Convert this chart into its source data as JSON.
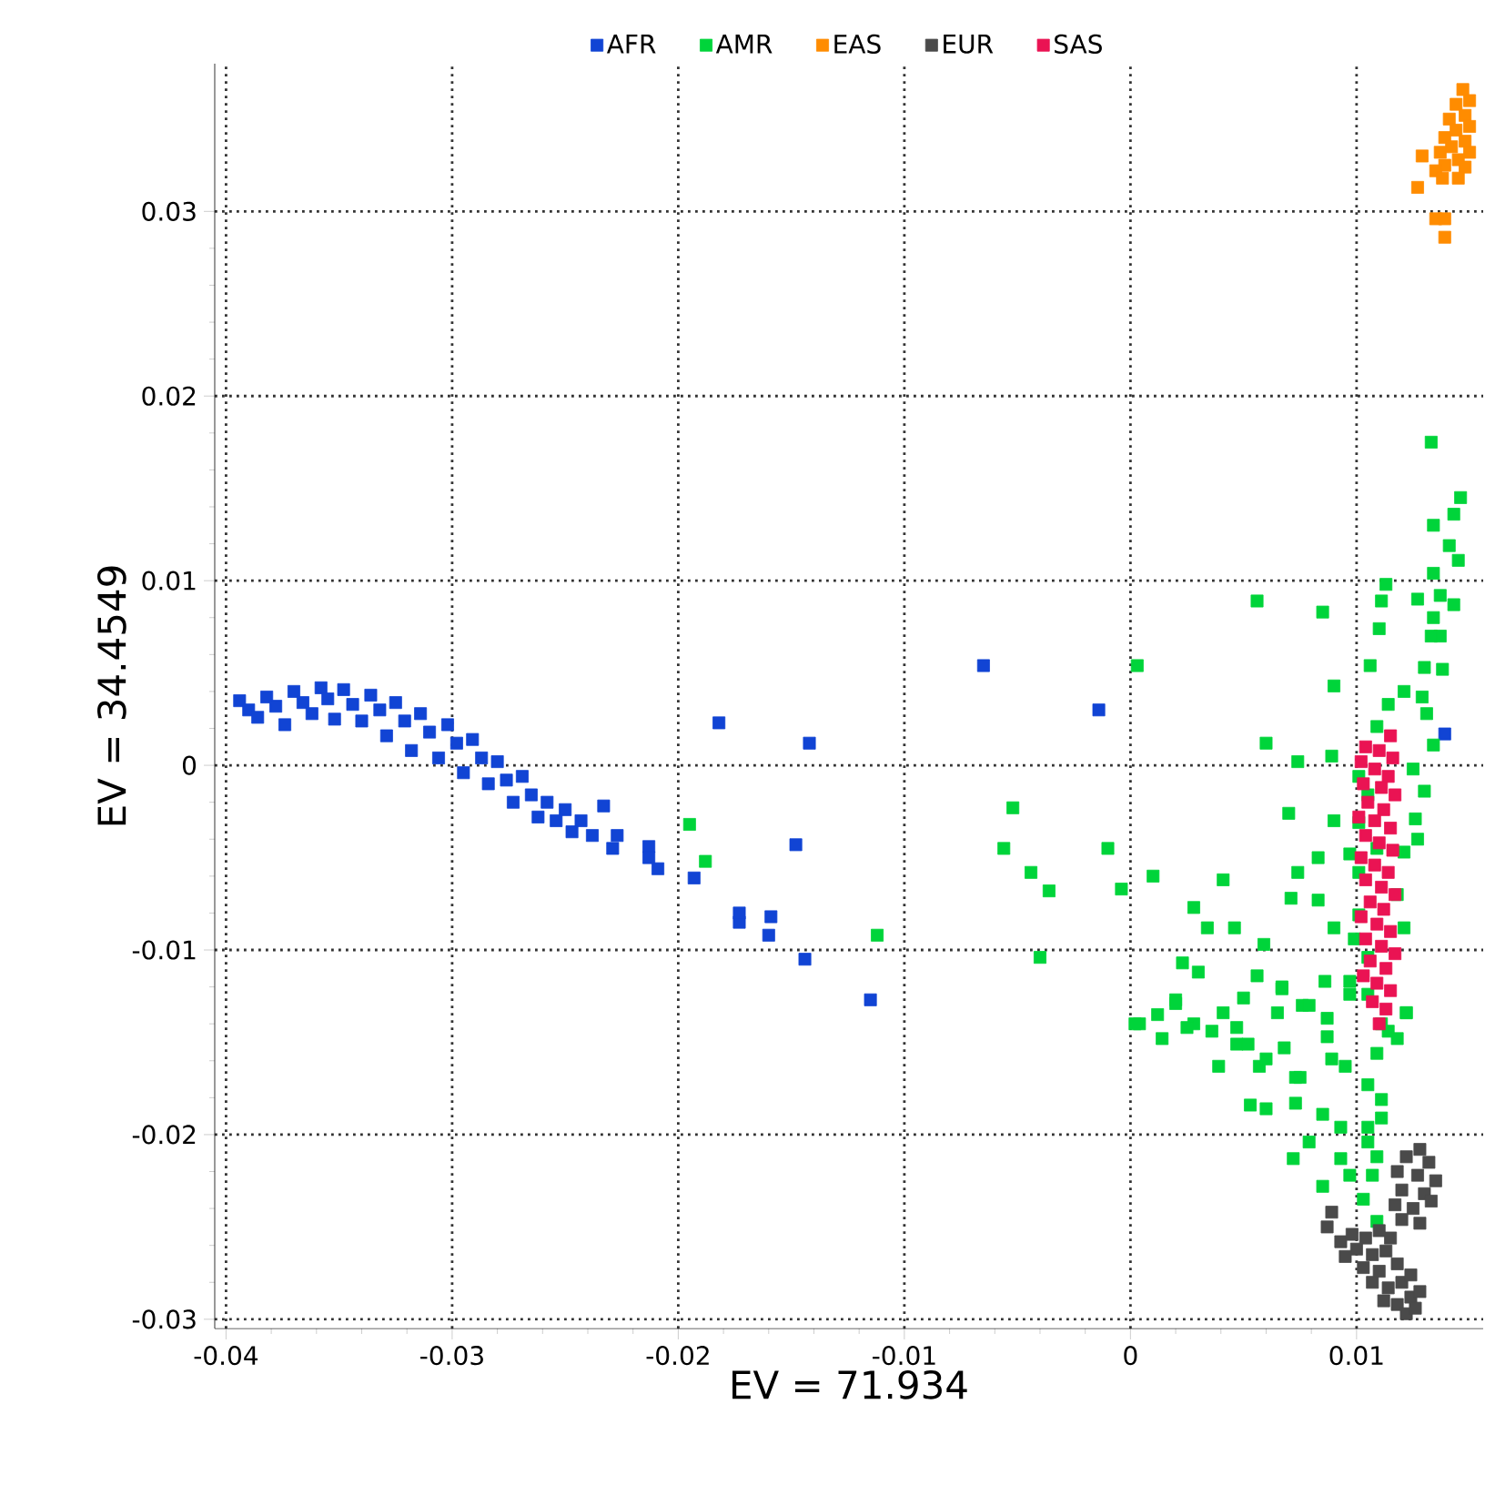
{
  "chart_data": {
    "type": "scatter",
    "xlabel": "EV = 71.934",
    "ylabel": "EV = 34.4549",
    "xlim": [
      -0.0405,
      0.0156
    ],
    "ylim": [
      -0.0305,
      0.038
    ],
    "xticks": [
      -0.04,
      -0.03,
      -0.02,
      -0.01,
      0,
      0.01
    ],
    "yticks": [
      -0.03,
      -0.02,
      -0.01,
      0,
      0.01,
      0.02,
      0.03
    ],
    "grid": true,
    "legend": "top",
    "marker": "square",
    "series": [
      {
        "name": "AFR",
        "color": "#1144d4",
        "x": [
          -0.0394,
          -0.039,
          -0.0386,
          -0.0382,
          -0.0378,
          -0.0374,
          -0.037,
          -0.0366,
          -0.0362,
          -0.0358,
          -0.0355,
          -0.0352,
          -0.0348,
          -0.0344,
          -0.034,
          -0.0336,
          -0.0332,
          -0.0329,
          -0.0325,
          -0.0321,
          -0.0318,
          -0.0314,
          -0.031,
          -0.0306,
          -0.0302,
          -0.0298,
          -0.0295,
          -0.0291,
          -0.0287,
          -0.0284,
          -0.028,
          -0.0276,
          -0.0273,
          -0.0269,
          -0.0265,
          -0.0262,
          -0.0258,
          -0.0254,
          -0.025,
          -0.0247,
          -0.0243,
          -0.0238,
          -0.0233,
          -0.0229,
          -0.0227,
          -0.0213,
          -0.0213,
          -0.0209,
          -0.0193,
          -0.0182,
          -0.0142,
          -0.0148,
          -0.0173,
          -0.0173,
          -0.0159,
          -0.016,
          -0.0144,
          -0.0115,
          -0.0065,
          -0.0014,
          0.0139
        ],
        "values": [
          0.0035,
          0.003,
          0.0026,
          0.0037,
          0.0032,
          0.0022,
          0.004,
          0.0034,
          0.0028,
          0.0042,
          0.0036,
          0.0025,
          0.0041,
          0.0033,
          0.0024,
          0.0038,
          0.003,
          0.0016,
          0.0034,
          0.0024,
          0.0008,
          0.0028,
          0.0018,
          0.0004,
          0.0022,
          0.0012,
          -0.0004,
          0.0014,
          0.0004,
          -0.001,
          0.0002,
          -0.0008,
          -0.002,
          -0.0006,
          -0.0016,
          -0.0028,
          -0.002,
          -0.003,
          -0.0024,
          -0.0036,
          -0.003,
          -0.0038,
          -0.0022,
          -0.0045,
          -0.0038,
          -0.0044,
          -0.005,
          -0.0056,
          -0.0061,
          0.0023,
          0.0012,
          -0.0043,
          -0.0085,
          -0.008,
          -0.0082,
          -0.0092,
          -0.0105,
          -0.0127,
          0.0054,
          0.003,
          0.0017
        ]
      },
      {
        "name": "AMR",
        "color": "#00d43a",
        "x": [
          -0.0195,
          -0.0188,
          -0.0112,
          0.0056,
          0.0085,
          0.0003,
          -0.0052,
          -0.0056,
          -0.001,
          -0.0044,
          -0.0036,
          -0.004,
          -0.0004,
          0.001,
          0.006,
          0.0074,
          0.0089,
          0.007,
          0.009,
          0.0083,
          0.0074,
          0.0071,
          0.0083,
          0.0041,
          0.0028,
          0.0034,
          0.0046,
          0.0059,
          0.0023,
          0.003,
          0.0056,
          0.005,
          0.0067,
          0.0086,
          0.009,
          0.0106,
          0.009,
          0.0113,
          0.0111,
          0.011,
          0.0127,
          0.0133,
          0.0146,
          0.0143,
          0.0134,
          0.0141,
          0.0145,
          0.0134,
          0.0143,
          0.0137,
          0.0134,
          0.0137,
          0.0133,
          0.013,
          0.0138,
          0.0121,
          0.0129,
          0.0114,
          0.0109,
          0.0131,
          0.0134,
          0.0125,
          0.013,
          0.0126,
          0.0127,
          0.0121,
          0.0118,
          0.0121,
          0.0101,
          0.0105,
          0.0101,
          0.0097,
          0.0101,
          0.0109,
          0.0101,
          0.0099,
          0.0105,
          0.0097,
          0.0105,
          0.0111,
          0.0122,
          0.0109,
          0.0105,
          0.0004,
          0.0012,
          0.0014,
          0.002,
          0.0028,
          0.0036,
          0.0041,
          0.0047,
          0.0039,
          0.0057,
          0.0068,
          0.0073,
          0.0087,
          0.0089,
          0.0095,
          0.0076,
          0.0065,
          0.0002,
          0.0025,
          0.0047,
          0.0052,
          0.006,
          0.0053,
          0.006,
          0.0075,
          0.0073,
          0.0085,
          0.0093,
          0.0079,
          0.0072,
          0.0085,
          0.0093,
          0.0097,
          0.0103,
          0.0109,
          0.0111,
          0.0111,
          0.0105,
          0.0105,
          0.0109,
          0.0107,
          0.0114,
          0.0118,
          0.0122,
          0.0087,
          0.0097,
          0.0079,
          0.0067,
          0.002
        ],
        "values": [
          -0.0032,
          -0.0052,
          -0.0092,
          0.0089,
          0.0083,
          0.0054,
          -0.0023,
          -0.0045,
          -0.0045,
          -0.0058,
          -0.0068,
          -0.0104,
          -0.0067,
          -0.006,
          0.0012,
          0.0002,
          0.0005,
          -0.0026,
          -0.003,
          -0.005,
          -0.0058,
          -0.0072,
          -0.0073,
          -0.0062,
          -0.0077,
          -0.0088,
          -0.0088,
          -0.0097,
          -0.0107,
          -0.0112,
          -0.0114,
          -0.0126,
          -0.0121,
          -0.0117,
          -0.0088,
          0.0054,
          0.0043,
          0.0098,
          0.0089,
          0.0074,
          0.009,
          0.0175,
          0.0145,
          0.0136,
          0.013,
          0.0119,
          0.0111,
          0.0104,
          0.0087,
          0.0092,
          0.008,
          0.007,
          0.007,
          0.0053,
          0.0052,
          0.004,
          0.0037,
          0.0033,
          0.0021,
          0.0028,
          0.0011,
          -0.0002,
          -0.0014,
          -0.0029,
          -0.004,
          -0.0047,
          -0.007,
          -0.0088,
          -0.0006,
          -0.0016,
          -0.0031,
          -0.0048,
          -0.0058,
          -0.0045,
          -0.0081,
          -0.0094,
          -0.0104,
          -0.0117,
          -0.0124,
          -0.014,
          -0.0134,
          -0.0156,
          -0.0173,
          -0.014,
          -0.0135,
          -0.0148,
          -0.0127,
          -0.014,
          -0.0144,
          -0.0134,
          -0.0151,
          -0.0163,
          -0.0163,
          -0.0153,
          -0.0169,
          -0.0147,
          -0.0159,
          -0.0163,
          -0.013,
          -0.0134,
          -0.014,
          -0.0142,
          -0.0142,
          -0.0151,
          -0.0159,
          -0.0184,
          -0.0186,
          -0.0169,
          -0.0183,
          -0.0189,
          -0.0196,
          -0.0204,
          -0.0213,
          -0.0228,
          -0.0213,
          -0.0222,
          -0.0235,
          -0.0247,
          -0.0181,
          -0.0191,
          -0.0196,
          -0.0204,
          -0.0212,
          -0.0222,
          -0.0144,
          -0.0148,
          -0.0134,
          -0.0137,
          -0.0124,
          -0.013,
          -0.012,
          -0.0129
        ]
      },
      {
        "name": "EAS",
        "color": "#ff8c00",
        "x": [
          0.0147,
          0.015,
          0.0144,
          0.0148,
          0.0141,
          0.015,
          0.0144,
          0.0139,
          0.0148,
          0.0142,
          0.015,
          0.0137,
          0.0145,
          0.0139,
          0.0148,
          0.0135,
          0.0138,
          0.0145,
          0.0129,
          0.0127,
          0.0135,
          0.0139,
          0.0139
        ],
        "values": [
          0.0366,
          0.036,
          0.0358,
          0.0352,
          0.035,
          0.0346,
          0.0344,
          0.034,
          0.0338,
          0.0335,
          0.0332,
          0.0332,
          0.0328,
          0.0325,
          0.0324,
          0.0322,
          0.0318,
          0.0318,
          0.033,
          0.0313,
          0.0296,
          0.0296,
          0.0286
        ]
      },
      {
        "name": "EUR",
        "color": "#4a4a4a",
        "x": [
          0.0128,
          0.0122,
          0.0132,
          0.0118,
          0.0127,
          0.0135,
          0.012,
          0.013,
          0.0117,
          0.0125,
          0.0133,
          0.012,
          0.0128,
          0.0089,
          0.0087,
          0.0093,
          0.0098,
          0.0104,
          0.011,
          0.0115,
          0.01,
          0.0107,
          0.0113,
          0.0095,
          0.0103,
          0.011,
          0.0118,
          0.0107,
          0.0114,
          0.012,
          0.0112,
          0.0118,
          0.0124,
          0.0122,
          0.0126,
          0.0128,
          0.0124
        ],
        "values": [
          -0.0208,
          -0.0212,
          -0.0215,
          -0.022,
          -0.0222,
          -0.0225,
          -0.023,
          -0.0232,
          -0.0238,
          -0.024,
          -0.0236,
          -0.0246,
          -0.0248,
          -0.0242,
          -0.025,
          -0.0258,
          -0.0254,
          -0.0256,
          -0.0252,
          -0.0256,
          -0.0262,
          -0.0265,
          -0.0263,
          -0.0266,
          -0.0272,
          -0.0274,
          -0.027,
          -0.028,
          -0.0283,
          -0.028,
          -0.029,
          -0.0292,
          -0.0288,
          -0.0297,
          -0.0294,
          -0.0285,
          -0.0276
        ]
      },
      {
        "name": "SAS",
        "color": "#ea1353",
        "x": [
          0.0115,
          0.0104,
          0.011,
          0.0116,
          0.0102,
          0.0108,
          0.0114,
          0.0103,
          0.0111,
          0.0117,
          0.0105,
          0.0112,
          0.0101,
          0.0108,
          0.0115,
          0.0104,
          0.011,
          0.0116,
          0.0102,
          0.0108,
          0.0114,
          0.0104,
          0.0111,
          0.0117,
          0.0106,
          0.0112,
          0.0102,
          0.0109,
          0.0115,
          0.0104,
          0.0111,
          0.0117,
          0.0106,
          0.0113,
          0.0103,
          0.0109,
          0.0115,
          0.0107,
          0.0113,
          0.011
        ],
        "values": [
          0.0016,
          0.001,
          0.0008,
          0.0004,
          0.0002,
          -0.0002,
          -0.0006,
          -0.001,
          -0.0012,
          -0.0016,
          -0.002,
          -0.0024,
          -0.0028,
          -0.003,
          -0.0034,
          -0.0038,
          -0.0042,
          -0.0046,
          -0.005,
          -0.0054,
          -0.0058,
          -0.0062,
          -0.0066,
          -0.007,
          -0.0074,
          -0.0078,
          -0.0082,
          -0.0086,
          -0.009,
          -0.0094,
          -0.0098,
          -0.0102,
          -0.0106,
          -0.011,
          -0.0114,
          -0.0118,
          -0.0122,
          -0.0128,
          -0.0132,
          -0.014
        ]
      }
    ]
  }
}
